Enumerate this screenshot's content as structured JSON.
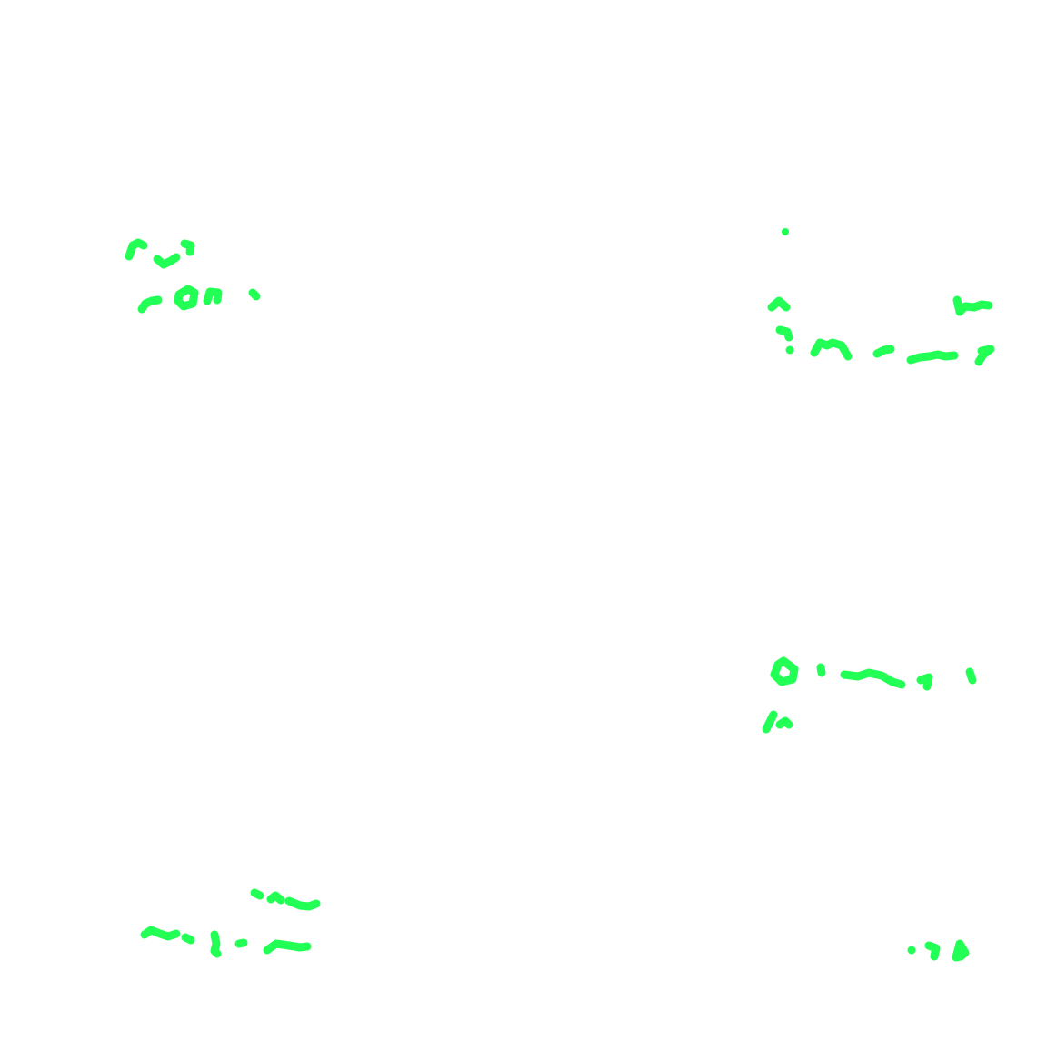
{
  "canvas": {
    "background": "#ffffff",
    "stroke_color": "#22ff55"
  }
}
